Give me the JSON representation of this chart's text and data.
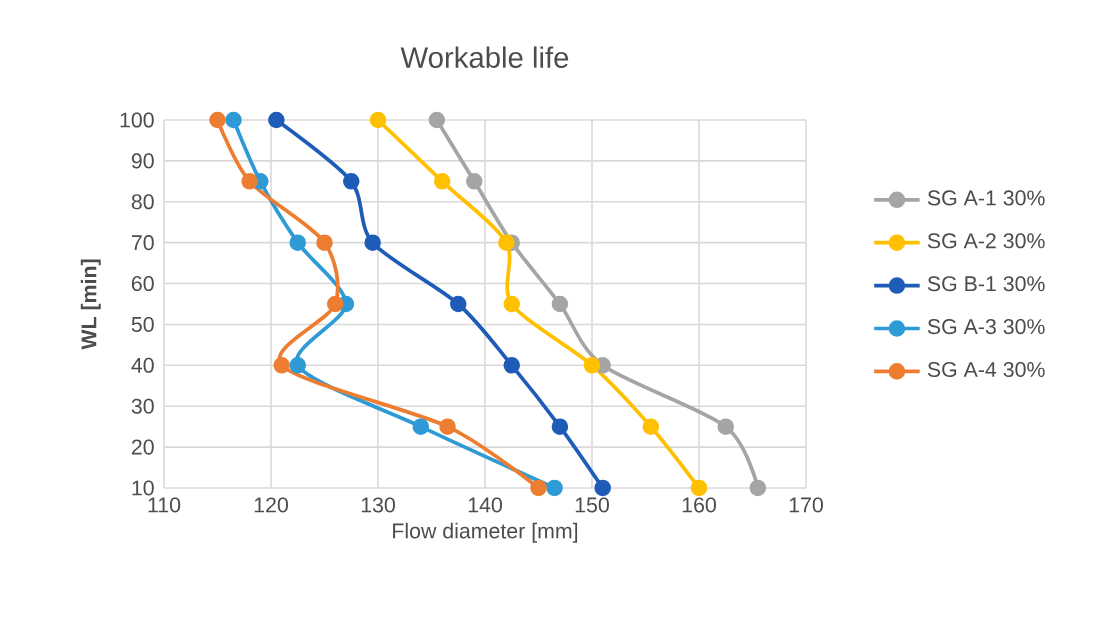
{
  "chart_data": {
    "type": "line",
    "title": "Workable life",
    "xlabel": "Flow diameter [mm]",
    "ylabel": "WL [min]",
    "xlim": [
      110,
      170
    ],
    "xticks": [
      110,
      120,
      130,
      140,
      150,
      160,
      170
    ],
    "ylim": [
      10,
      100
    ],
    "yticks": [
      10,
      20,
      30,
      40,
      50,
      60,
      70,
      80,
      90,
      100
    ],
    "grid": true,
    "legend": "right",
    "marker": "circle",
    "line_style": "solid",
    "series": [
      {
        "name": "SG A-1 30%",
        "color": "#a5a5a5",
        "x": [
          135.5,
          139,
          142.5,
          147,
          151,
          162.5,
          165.5
        ],
        "values": [
          100,
          85,
          70,
          55,
          40,
          25,
          10
        ]
      },
      {
        "name": "SG A-2 30%",
        "color": "#ffc000",
        "x": [
          130,
          136,
          142,
          142.5,
          150,
          155.5,
          160
        ],
        "values": [
          100,
          85,
          70,
          55,
          40,
          25,
          10
        ]
      },
      {
        "name": "SG B-1 30%",
        "color": "#1f5cb8",
        "x": [
          120.5,
          127.5,
          129.5,
          137.5,
          142.5,
          147,
          151
        ],
        "values": [
          100,
          85,
          70,
          55,
          40,
          25,
          10
        ]
      },
      {
        "name": "SG A-3 30%",
        "color": "#2e9ad6",
        "x": [
          116.5,
          119,
          122.5,
          127,
          122.5,
          134,
          146.5
        ],
        "values": [
          100,
          85,
          70,
          55,
          40,
          25,
          10
        ]
      },
      {
        "name": "SG A-4 30%",
        "color": "#ed7d31",
        "x": [
          115,
          118,
          125,
          126,
          121,
          136.5,
          145
        ],
        "values": [
          100,
          85,
          70,
          55,
          40,
          25,
          10
        ]
      }
    ]
  }
}
